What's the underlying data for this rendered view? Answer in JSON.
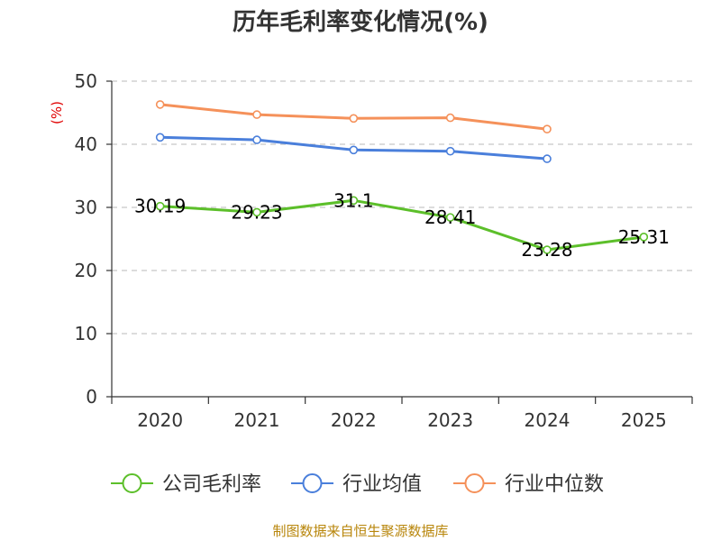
{
  "chart_data": {
    "type": "line",
    "title": "历年毛利率变化情况(%)",
    "ylabel": "(%)",
    "xlabel": "",
    "categories": [
      "2020",
      "2021",
      "2022",
      "2023",
      "2024",
      "2025"
    ],
    "ylim": [
      0,
      50
    ],
    "yticks": [
      "0",
      "10",
      "20",
      "30",
      "40",
      "50"
    ],
    "grid": true,
    "legend_position": "bottom",
    "series": [
      {
        "name": "公司毛利率",
        "color": "#5cbf2a",
        "values": [
          30.19,
          29.23,
          31.1,
          28.41,
          23.28,
          25.31
        ],
        "labels": [
          "30.19",
          "29.23",
          "31.1",
          "28.41",
          "23.28",
          "25.31"
        ]
      },
      {
        "name": "行业均值",
        "color": "#4a7fdb",
        "values": [
          41.1,
          40.7,
          39.1,
          38.9,
          37.7,
          null
        ]
      },
      {
        "name": "行业中位数",
        "color": "#f5915a",
        "values": [
          46.3,
          44.7,
          44.1,
          44.2,
          42.4,
          null
        ]
      }
    ]
  },
  "footer": {
    "source": "制图数据来自恒生聚源数据库"
  }
}
